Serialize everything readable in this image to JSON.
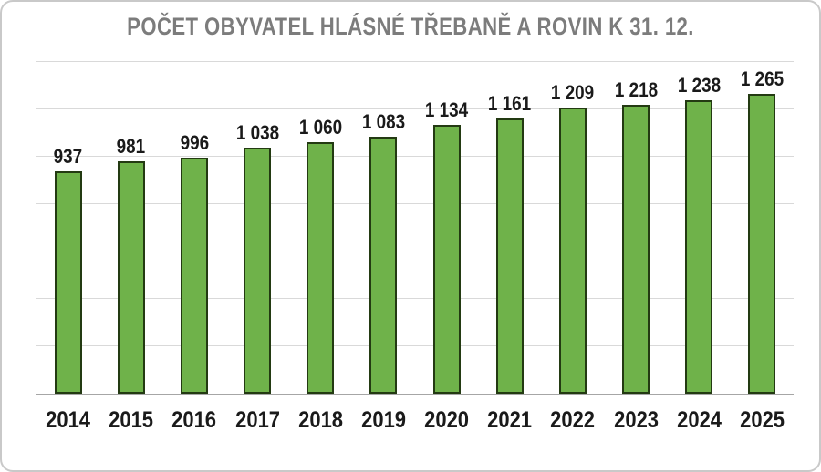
{
  "chart_data": {
    "type": "bar",
    "title": "POČET OBYVATEL HLÁSNÉ TŘEBANĚ A ROVIN K 31. 12.",
    "categories": [
      "2014",
      "2015",
      "2016",
      "2017",
      "2018",
      "2019",
      "2020",
      "2021",
      "2022",
      "2023",
      "2024",
      "2025"
    ],
    "values": [
      937,
      981,
      996,
      1038,
      1060,
      1083,
      1134,
      1161,
      1209,
      1218,
      1238,
      1265
    ],
    "value_labels": [
      "937",
      "981",
      "996",
      "1 038",
      "1 060",
      "1 083",
      "1 134",
      "1 161",
      "1 209",
      "1 218",
      "1 238",
      "1 265"
    ],
    "xlabel": "",
    "ylabel": "",
    "ylim": [
      0,
      1400
    ],
    "gridline_step": 200,
    "grid": true,
    "legend": false,
    "colors": {
      "bar_fill": "#6FB24A",
      "bar_border": "#233A12",
      "gridline": "#D9D9D9",
      "baseline": "#A6A6A6",
      "title": "#7C7C7C",
      "label": "#1A1A1A",
      "frame_border": "#C9C9C9",
      "background": "#FFFFFF"
    }
  }
}
